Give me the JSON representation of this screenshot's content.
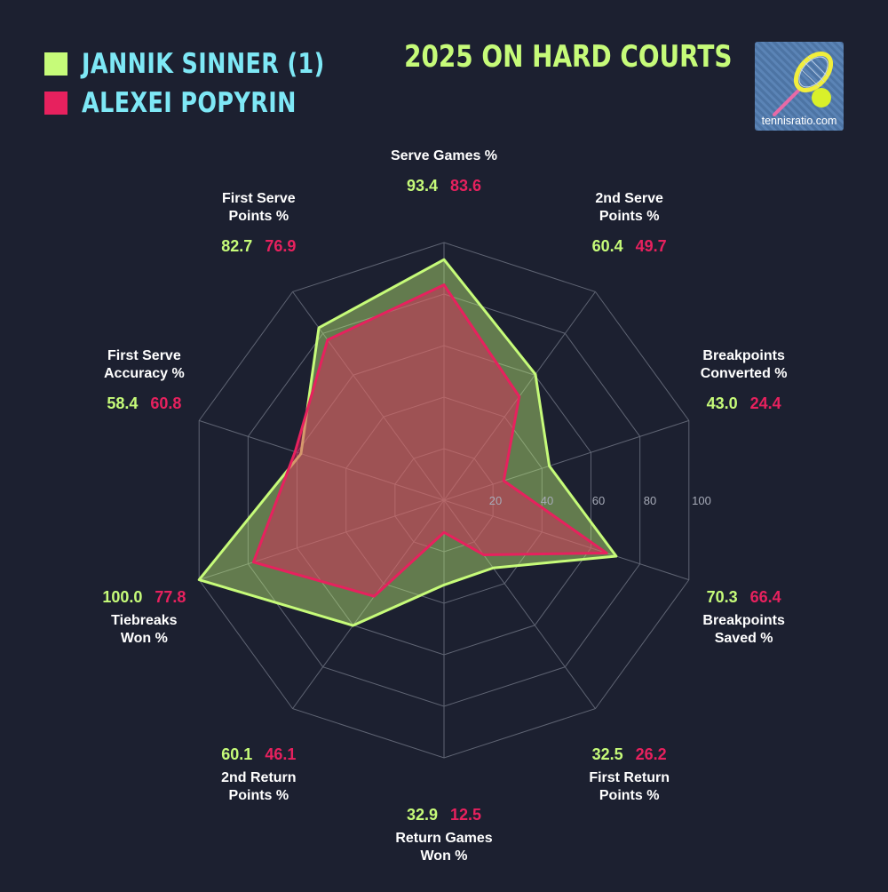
{
  "legend": {
    "player_a": "JANNIK SINNER (1)",
    "player_b": "ALEXEI POPYRIN"
  },
  "title": "2025 ON HARD COURTS",
  "logo": {
    "text": "tennisratio.com",
    "icon": "tennis-racket-ball-icon"
  },
  "colors": {
    "background": "#1c2030",
    "player_a": "#c6fb79",
    "player_b": "#e7215e",
    "legend_text": "#7ee8f6",
    "grid": "#5f6473"
  },
  "chart_data": {
    "type": "radar",
    "title": "2025 ON HARD COURTS",
    "range": [
      0,
      100
    ],
    "ticks": [
      "20",
      "40",
      "60",
      "80",
      "100"
    ],
    "axes": [
      {
        "line1": "Serve Games %",
        "line2": ""
      },
      {
        "line1": "2nd Serve",
        "line2": "Points %"
      },
      {
        "line1": "Breakpoints",
        "line2": "Converted %"
      },
      {
        "line1": "Breakpoints",
        "line2": "Saved %"
      },
      {
        "line1": "First Return",
        "line2": "Points %"
      },
      {
        "line1": "Return Games",
        "line2": "Won %"
      },
      {
        "line1": "2nd Return",
        "line2": "Points %"
      },
      {
        "line1": "Tiebreaks",
        "line2": "Won %"
      },
      {
        "line1": "First Serve",
        "line2": "Accuracy %"
      },
      {
        "line1": "First Serve",
        "line2": "Points %"
      }
    ],
    "series": [
      {
        "name": "JANNIK SINNER (1)",
        "color": "#c6fb79",
        "values": [
          93.4,
          60.4,
          43.0,
          70.3,
          32.5,
          32.9,
          60.1,
          100.0,
          58.4,
          82.7
        ],
        "labels": [
          "93.4",
          "60.4",
          "43.0",
          "70.3",
          "32.5",
          "32.9",
          "60.1",
          "100.0",
          "58.4",
          "82.7"
        ]
      },
      {
        "name": "ALEXEI POPYRIN",
        "color": "#e7215e",
        "values": [
          83.6,
          49.7,
          24.4,
          66.4,
          26.2,
          12.5,
          46.1,
          77.8,
          60.8,
          76.9
        ],
        "labels": [
          "83.6",
          "49.7",
          "24.4",
          "66.4",
          "26.2",
          "12.5",
          "46.1",
          "77.8",
          "60.8",
          "76.9"
        ]
      }
    ]
  }
}
